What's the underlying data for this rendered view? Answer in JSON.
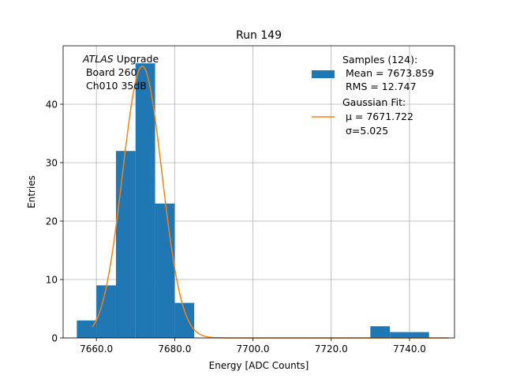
{
  "chart_data": {
    "type": "bar",
    "title": "Run 149",
    "xlabel": "Energy [ADC Counts]",
    "ylabel": "Entries",
    "xlim": [
      7651.5,
      7751.5
    ],
    "ylim": [
      0,
      50
    ],
    "xticks": [
      7660,
      7680,
      7700,
      7720,
      7740
    ],
    "xtick_labels": [
      "7660.0",
      "7680.0",
      "7700.0",
      "7720.0",
      "7740.0"
    ],
    "yticks": [
      0,
      10,
      20,
      30,
      40
    ],
    "ytick_labels": [
      "0",
      "10",
      "20",
      "30",
      "40"
    ],
    "grid": true,
    "annotation": {
      "italic_prefix": "ATLAS",
      "line1_rest": " Upgrade",
      "line2": " Board 260",
      "line3": " Ch010 35dB"
    },
    "histogram": {
      "name": "Samples (124):",
      "bin_edges": [
        7655,
        7660,
        7665,
        7670,
        7675,
        7680,
        7685,
        7690,
        7695,
        7700,
        7705,
        7710,
        7715,
        7720,
        7725,
        7730,
        7735,
        7740,
        7745
      ],
      "counts": [
        3,
        9,
        32,
        47,
        23,
        6,
        0,
        0,
        0,
        0,
        0,
        0,
        0,
        0,
        0,
        2,
        1,
        1
      ],
      "color": "#1f77b4"
    },
    "fit": {
      "name": "Gaussian Fit:",
      "mu": 7671.722,
      "sigma": 5.025,
      "amplitude": 46.5,
      "x_range": [
        7659,
        7750
      ],
      "color": "#ff7f0e"
    },
    "legend": {
      "placement": "top-right",
      "entries": [
        {
          "line1": "Samples (124):",
          "line2": " Mean = 7673.859",
          "line3": " RMS = 12.747"
        },
        {
          "line1": "Gaussian Fit:",
          "line2": " μ = 7671.722",
          "line3": " σ=5.025"
        }
      ]
    }
  }
}
